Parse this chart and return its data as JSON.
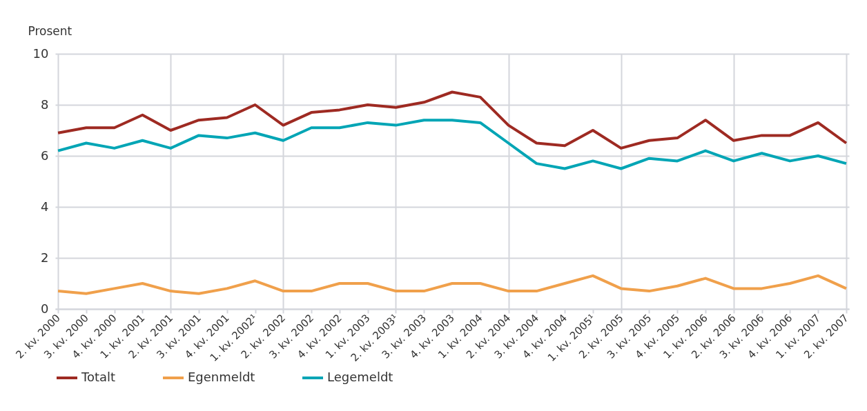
{
  "chart_data": {
    "type": "line",
    "ylabel": "Prosent",
    "categories": [
      "2. kv. 2000",
      "3. kv. 2000",
      "4. kv. 2000",
      "1. kv. 2001",
      "2. kv. 2001",
      "3. kv. 2001",
      "4. kv. 2001",
      "1. kv. 2002¹",
      "2. kv. 2002",
      "3. kv. 2002",
      "4. kv. 2002",
      "1. kv. 2003",
      "2. kv. 2003¹",
      "3. kv. 2003",
      "4. kv. 2003",
      "1. kv. 2004",
      "2. kv. 2004",
      "3. kv. 2004",
      "4. kv. 2004",
      "1. kv. 2005¹",
      "2. kv. 2005",
      "3. kv. 2005",
      "4. kv. 2005",
      "1. kv. 2006",
      "2. kv. 2006",
      "3. kv. 2006",
      "4. kv. 2006",
      "1. kv. 2007",
      "2. kv. 2007"
    ],
    "series": [
      {
        "name": "Totalt",
        "color": "#9e2a22",
        "values": [
          6.9,
          7.1,
          7.1,
          7.6,
          7.0,
          7.4,
          7.5,
          8.0,
          7.2,
          7.7,
          7.8,
          8.0,
          7.9,
          8.1,
          8.5,
          8.3,
          7.2,
          6.5,
          6.4,
          7.0,
          6.3,
          6.6,
          6.7,
          7.4,
          6.6,
          6.8,
          6.8,
          7.3,
          6.5
        ]
      },
      {
        "name": "Egenmeldt",
        "color": "#f0a04b",
        "values": [
          0.7,
          0.6,
          0.8,
          1.0,
          0.7,
          0.6,
          0.8,
          1.1,
          0.7,
          0.7,
          1.0,
          1.0,
          0.7,
          0.7,
          1.0,
          1.0,
          0.7,
          0.7,
          1.0,
          1.3,
          0.8,
          0.7,
          0.9,
          1.2,
          0.8,
          0.8,
          1.0,
          1.3,
          0.8
        ]
      },
      {
        "name": "Legemeldt",
        "color": "#00a5b5",
        "values": [
          6.2,
          6.5,
          6.3,
          6.6,
          6.3,
          6.8,
          6.7,
          6.9,
          6.6,
          7.1,
          7.1,
          7.3,
          7.2,
          7.4,
          7.4,
          7.3,
          6.5,
          5.7,
          5.5,
          5.8,
          5.5,
          5.9,
          5.8,
          6.2,
          5.8,
          6.1,
          5.8,
          6.0,
          5.7
        ]
      }
    ],
    "ylim": [
      0,
      10
    ],
    "yticks": [
      0,
      2,
      4,
      6,
      8,
      10
    ],
    "grid": true,
    "legend": "bottom",
    "line_style": "solid",
    "marker": "none"
  }
}
